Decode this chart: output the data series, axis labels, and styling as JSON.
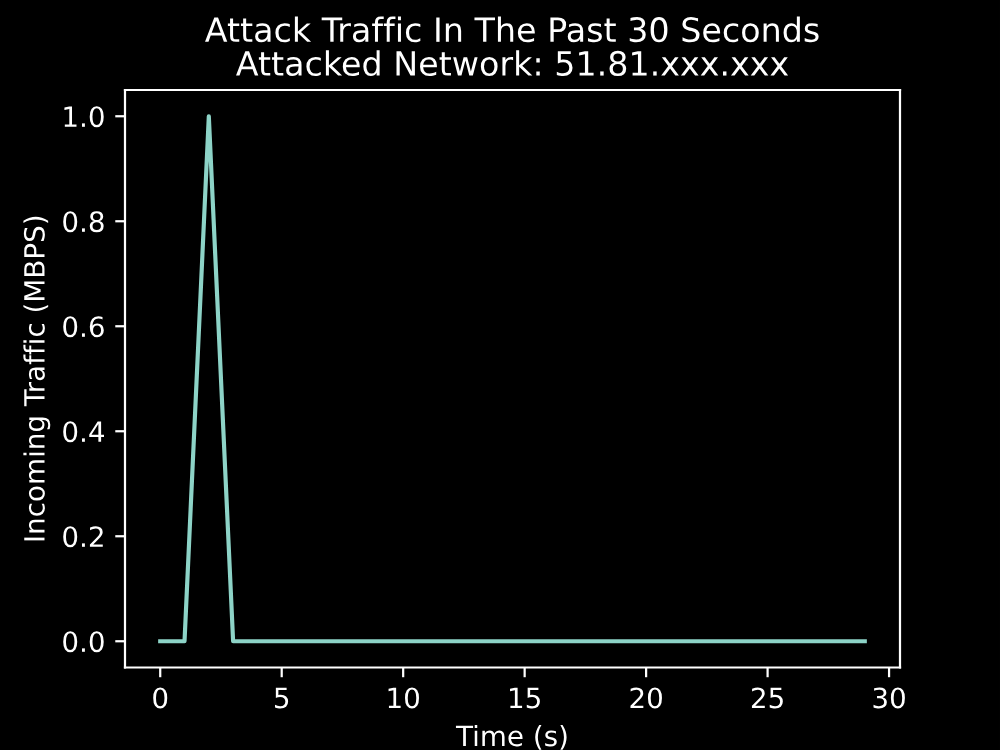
{
  "chart_data": {
    "type": "line",
    "title": "Attack Traffic In The Past 30 Seconds",
    "subtitle": "Attacked Network: 51.81.xxx.xxx",
    "xlabel": "Time (s)",
    "ylabel": "Incoming Traffic (MBPS)",
    "x": [
      0,
      1,
      2,
      3,
      4,
      5,
      6,
      7,
      8,
      9,
      10,
      11,
      12,
      13,
      14,
      15,
      16,
      17,
      18,
      19,
      20,
      21,
      22,
      23,
      24,
      25,
      26,
      27,
      28,
      29
    ],
    "series": [
      {
        "color": "#8dd3c7",
        "values": [
          0,
          0,
          1.0,
          0,
          0,
          0,
          0,
          0,
          0,
          0,
          0,
          0,
          0,
          0,
          0,
          0,
          0,
          0,
          0,
          0,
          0,
          0,
          0,
          0,
          0,
          0,
          0,
          0,
          0,
          0
        ]
      }
    ],
    "xlim": [
      -1.45,
      30.45
    ],
    "ylim": [
      -0.05,
      1.05
    ],
    "xticks": [
      0,
      5,
      10,
      15,
      20,
      25,
      30
    ],
    "yticks": [
      {
        "value": 0,
        "label": "0.0"
      },
      {
        "value": 0.2,
        "label": "0.2"
      },
      {
        "value": 0.4,
        "label": "0.4"
      },
      {
        "value": 0.6,
        "label": "0.6"
      },
      {
        "value": 0.8,
        "label": "0.8"
      },
      {
        "value": 1.0,
        "label": "1.0"
      }
    ],
    "grid": false,
    "legend": false,
    "marker": "none",
    "line_style": "solid"
  }
}
